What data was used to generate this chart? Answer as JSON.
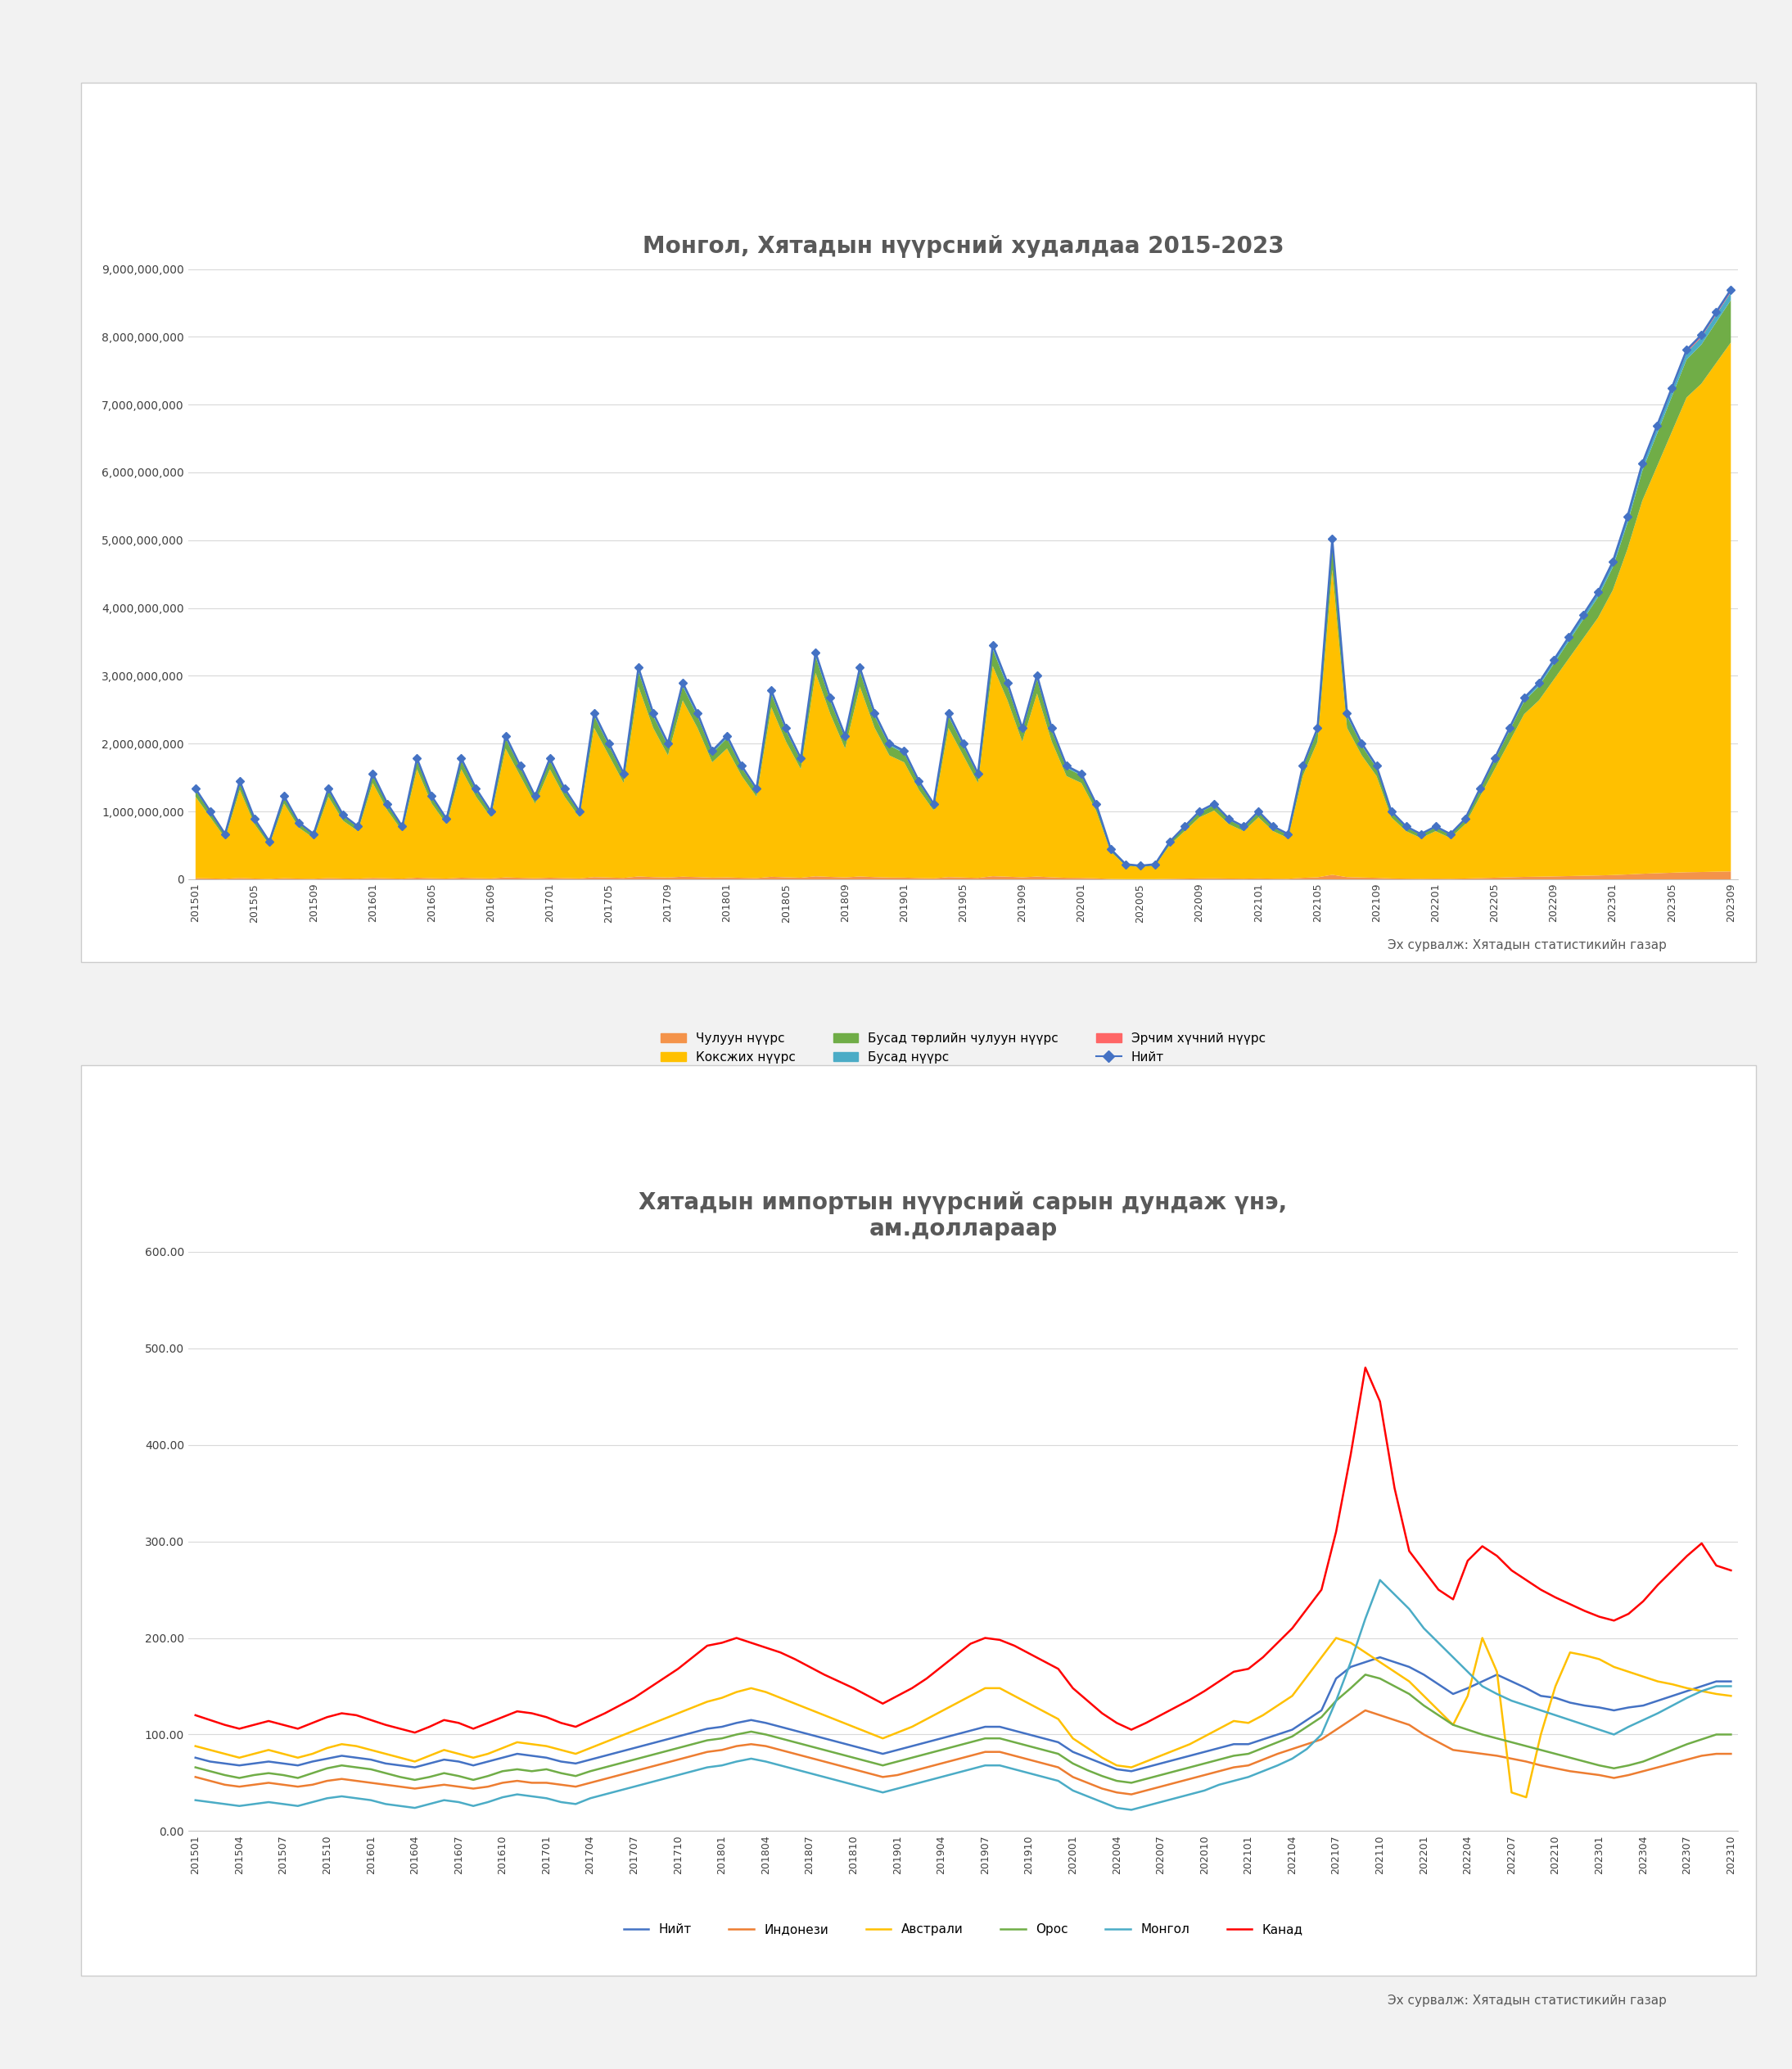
{
  "chart1": {
    "title": "Монгол, Хятадын нүүрсний худалдаа 2015-2023",
    "source": "Эх сурвалж: Хятадын статистикийн газар",
    "ylim": [
      0,
      9000000000
    ],
    "yticks": [
      0,
      1000000000,
      2000000000,
      3000000000,
      4000000000,
      5000000000,
      6000000000,
      7000000000,
      8000000000,
      9000000000
    ],
    "legend_labels": [
      "Чулуун нүүрс",
      "Коксжих нүүрс",
      "Бусад төрлийн чулуун нүүрс",
      "Бусад нүүрс",
      "Эрчим хүчний нүүрс",
      "Нийт"
    ],
    "stack_colors": [
      "#F4934A",
      "#FFC000",
      "#70AD47",
      "#4BACC6",
      "#FF6666"
    ],
    "line_color": "#4472C4",
    "grid_color": "#D9D9D9"
  },
  "chart2": {
    "title": "Хятадын импортын нүүрсний сарын дундаж үнэ,\nам.доллараар",
    "source": "Эх сурвалж: Хятадын статистикийн газар",
    "ylim": [
      0,
      600
    ],
    "yticks": [
      0,
      100,
      200,
      300,
      400,
      500,
      600
    ],
    "legend_labels": [
      "Нийт",
      "Индонези",
      "Австрали",
      "Орос",
      "Монгол",
      "Канад"
    ],
    "line_colors": [
      "#4472C4",
      "#ED7D31",
      "#FFC000",
      "#70AD47",
      "#4BACC6",
      "#FF0000"
    ],
    "grid_color": "#D9D9D9"
  },
  "source_text": "Эх сурвалж: Хятадын статистикийн газар"
}
